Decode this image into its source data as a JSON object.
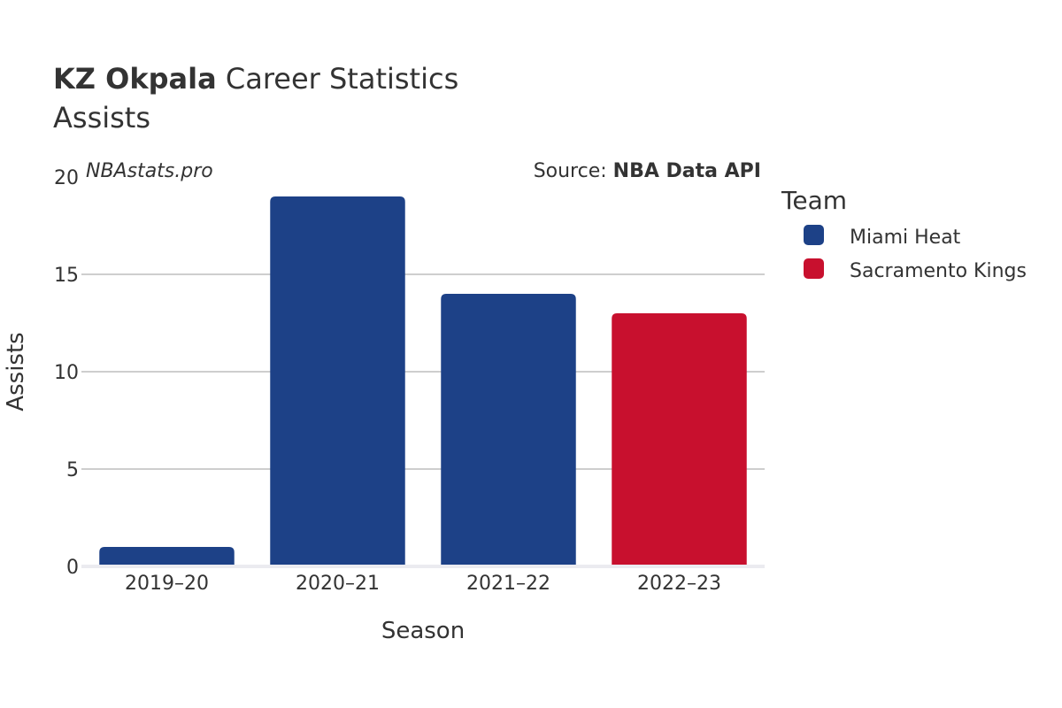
{
  "chart_data": {
    "type": "bar",
    "title_bold": "KZ Okpala",
    "title_rest": " Career Statistics",
    "subtitle": "Assists",
    "watermark": "NBAstats.pro",
    "source_label": "Source: ",
    "source_value": "NBA Data API",
    "xlabel": "Season",
    "ylabel": "Assists",
    "ylim": [
      0,
      20
    ],
    "yticks": [
      0,
      5,
      10,
      15,
      20
    ],
    "grid": true,
    "categories": [
      "2019–20",
      "2020–21",
      "2021–22",
      "2022–23"
    ],
    "values": [
      1,
      19,
      14,
      13
    ],
    "teams": [
      "Miami Heat",
      "Miami Heat",
      "Miami Heat",
      "Sacramento Kings"
    ],
    "legend": {
      "title": "Team",
      "placement": "right",
      "entries": [
        {
          "name": "Miami Heat",
          "color": "#1d4187"
        },
        {
          "name": "Sacramento Kings",
          "color": "#c8102e"
        }
      ]
    }
  }
}
